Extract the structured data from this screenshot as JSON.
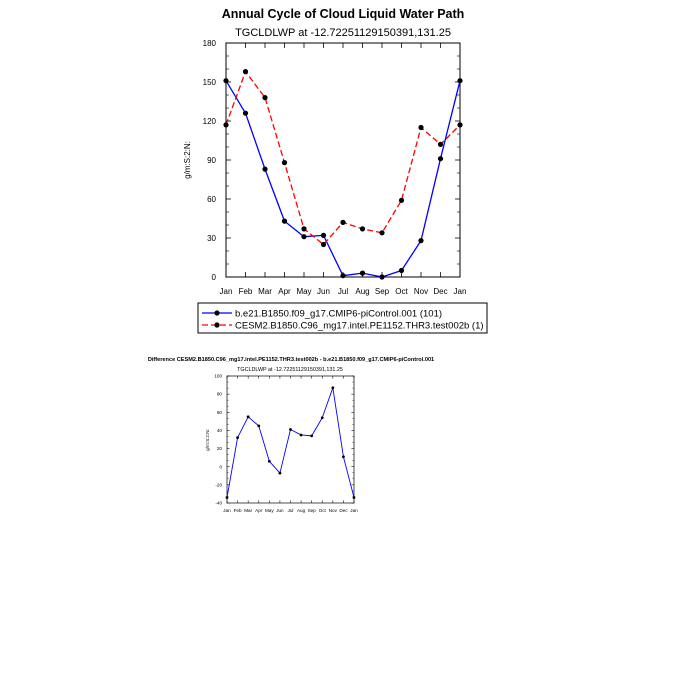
{
  "chart_data": [
    {
      "type": "line",
      "title": "Annual Cycle of Cloud Liquid Water Path",
      "subtitle": "TGCLDLWP at -12.72251129150391,131.25",
      "ylabel": "g/m:S:2:N:",
      "xlabel": "",
      "categories": [
        "Jan",
        "Feb",
        "Mar",
        "Apr",
        "May",
        "Jun",
        "Jul",
        "Aug",
        "Sep",
        "Oct",
        "Nov",
        "Dec",
        "Jan"
      ],
      "ylim": [
        0,
        180
      ],
      "yticks": [
        0,
        30,
        60,
        90,
        120,
        150,
        180
      ],
      "series": [
        {
          "name": "b.e21.B1850.f09_g17.CMIP6-piControl.001 (101)",
          "color": "#0000ff",
          "style": "solid",
          "values": [
            151,
            126,
            83,
            43,
            31,
            32,
            1,
            3,
            0,
            5,
            28,
            91,
            151
          ]
        },
        {
          "name": "CESM2.B1850.C96_mg17.intel.PE1152.THR3.test002b (1)",
          "color": "#ff0000",
          "style": "dashed",
          "values": [
            117,
            158,
            138,
            88,
            37,
            25,
            42,
            37,
            34,
            59,
            115,
            102,
            117
          ]
        }
      ],
      "legend_position": "bottom"
    },
    {
      "type": "line",
      "title": "Difference CESM2.B1850.C96_mg17.intel.PE1152.THR3.test002b - b.e21.B1850.f09_g17.CMIP6-piControl.001",
      "subtitle": "TGCLDLWP at -12.72251129150391,131.25",
      "ylabel": "g/m:S:2:N:",
      "xlabel": "",
      "categories": [
        "Jan",
        "Feb",
        "Mar",
        "Apr",
        "May",
        "Jun",
        "Jul",
        "Aug",
        "Sep",
        "Oct",
        "Nov",
        "Dec",
        "Jan"
      ],
      "ylim": [
        -40,
        100
      ],
      "yticks": [
        -40,
        -20,
        0,
        20,
        40,
        60,
        80,
        100
      ],
      "series": [
        {
          "name": "difference",
          "color": "#0000ff",
          "style": "solid",
          "values": [
            -34,
            32,
            55,
            45,
            6,
            -7,
            41,
            35,
            34,
            54,
            87,
            11,
            -34
          ]
        }
      ]
    }
  ]
}
